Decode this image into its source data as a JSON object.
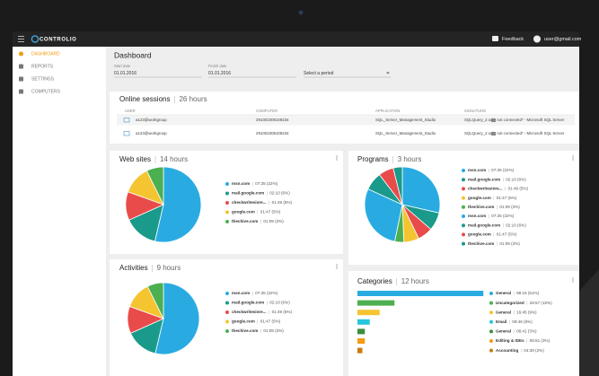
{
  "app": {
    "brand": "CONTROLIO",
    "feedback": "Feedback",
    "user": "user@gmail.com"
  },
  "nav": [
    "DASHBOARD",
    "REPORTS",
    "SETTINGS",
    "COMPUTERS"
  ],
  "page": {
    "title": "Dashboard",
    "start_label": "Start date",
    "start": "01.01.2016",
    "finish_label": "Finish date",
    "finish": "01.01.2016",
    "period": "Select a period"
  },
  "sessions": {
    "title": "Online sessions",
    "total": "26 hours",
    "columns": [
      "USER",
      "COMPUTER",
      "APPLICATION",
      "SIGNATURE"
    ],
    "rows": [
      [
        "a123@workgroup",
        "291002308109234",
        "SQL_Server_Management_Studio",
        "SQLQuery_2.sql - not connected* - Microsoft SQL Server"
      ],
      [
        "a123@workgroup",
        "291002308109234",
        "SQL_Server_Management_Studio",
        "SQLQuery_2.sql - not connected* - Microsoft SQL Server"
      ]
    ]
  },
  "chart_data": [
    {
      "type": "pie",
      "title": "Web sites",
      "subtitle": "14 hours",
      "categories": [
        "msn.com",
        "mail.google.com",
        "checkwritesinre...",
        "google.com",
        "thechive.com"
      ],
      "values": [
        22,
        6,
        5,
        5,
        3
      ],
      "value_labels": [
        "07:35 (22%)",
        "02:10 (6%)",
        "01:49 (5%)",
        "01:47 (5%)",
        "01:09 (3%)"
      ],
      "colors": [
        "#29abe2",
        "#1a9a8a",
        "#e94b4b",
        "#f5c431",
        "#4caf50"
      ]
    },
    {
      "type": "pie",
      "title": "Programs",
      "subtitle": "3 hours",
      "categories": [
        "msn.com",
        "mail.google.com",
        "checkwritesinre...",
        "google.com",
        "thechive.com",
        "msn.com",
        "mail.google.com",
        "google.com",
        "thechive.com"
      ],
      "values": [
        22,
        6,
        5,
        5,
        3,
        22,
        6,
        5,
        3
      ],
      "value_labels": [
        "07:35 (22%)",
        "02:10 (6%)",
        "01:49 (5%)",
        "01:47 (5%)",
        "01:09 (3%)",
        "07:35 (22%)",
        "02:10 (6%)",
        "01:47 (5%)",
        "01:09 (3%)"
      ],
      "colors": [
        "#29abe2",
        "#1a9a8a",
        "#e94b4b",
        "#f5c431",
        "#4caf50",
        "#29abe2",
        "#1a9a8a",
        "#e94b4b",
        "#1a9a8a"
      ]
    },
    {
      "type": "pie",
      "title": "Activities",
      "subtitle": "9 hours",
      "categories": [
        "msn.com",
        "mail.google.com",
        "checkwritesinre...",
        "google.com",
        "thechive.com"
      ],
      "values": [
        22,
        6,
        5,
        5,
        3
      ],
      "value_labels": [
        "07:35 (22%)",
        "02:10 (6%)",
        "01:49 (5%)",
        "01:47 (5%)",
        "01:09 (3%)"
      ],
      "colors": [
        "#29abe2",
        "#1a9a8a",
        "#e94b4b",
        "#f5c431",
        "#4caf50"
      ]
    },
    {
      "type": "bar",
      "title": "Categories",
      "subtitle": "12 hours",
      "categories": [
        "General",
        "Uncategorized",
        "General",
        "Email",
        "General",
        "Editing & IDEs",
        "Accounting"
      ],
      "values": [
        51,
        15,
        9,
        5,
        3,
        3,
        2
      ],
      "value_labels": [
        "98:16 (51%)",
        "28:57 (15%)",
        "16:45 (9%)",
        "09:46 (5%)",
        "06:41 (3%)",
        "05:51 (3%)",
        "04:39 (2%)"
      ],
      "colors": [
        "#29abe2",
        "#4caf50",
        "#f5c431",
        "#26c6da",
        "#388e3c",
        "#f39c12",
        "#c77c0e"
      ]
    }
  ]
}
